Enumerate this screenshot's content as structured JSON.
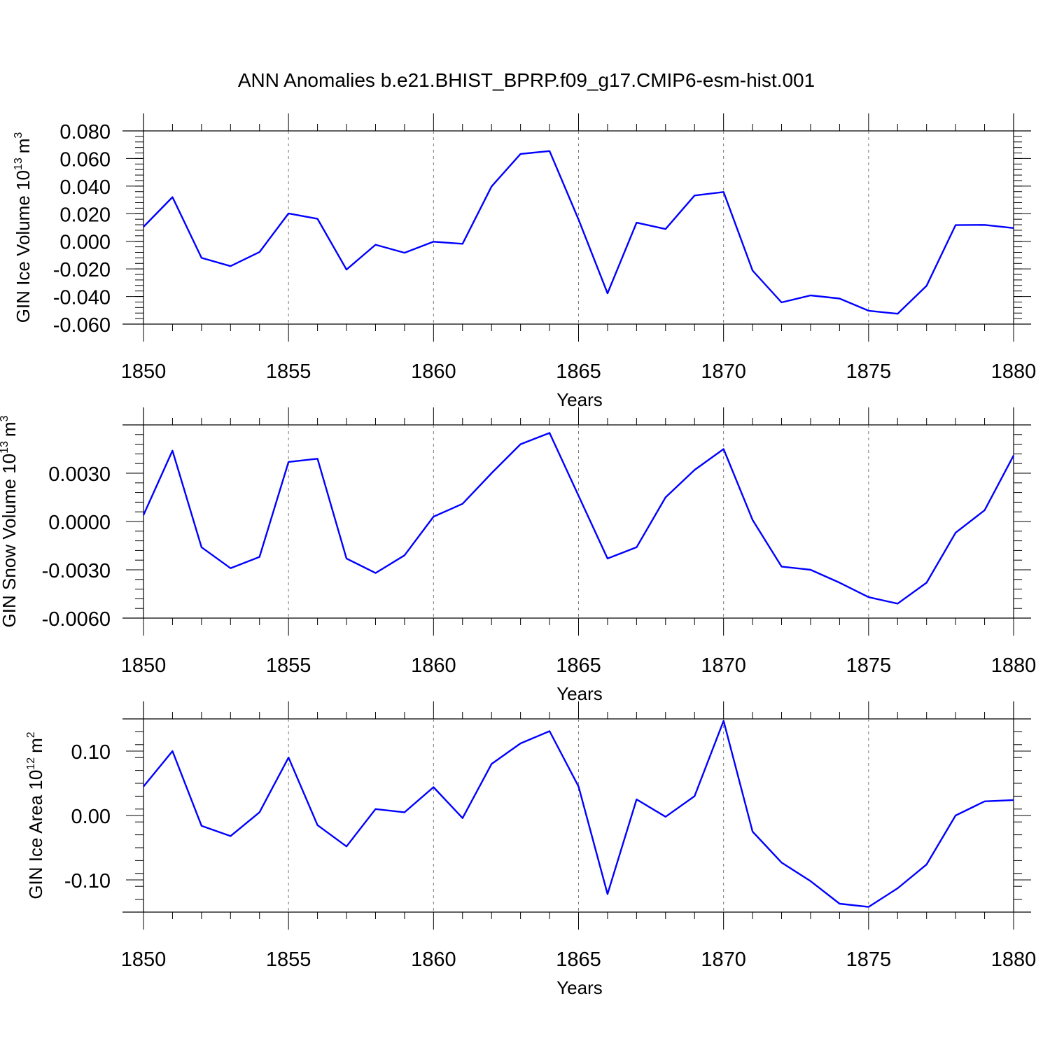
{
  "title": "ANN Anomalies b.e21.BHIST_BPRP.f09_g17.CMIP6-esm-hist.001",
  "colors": {
    "series": "#0000ff",
    "axis": "#000000",
    "grid": "#777777",
    "background": "#ffffff"
  },
  "chart_data": [
    {
      "type": "line",
      "ylabel": "GIN Ice Volume 10",
      "ylabel_exponent": "13",
      "ylabel_unit": "m",
      "ylabel_unit_exponent": "3",
      "xlabel": "Years",
      "xlim": [
        1850,
        1880
      ],
      "ylim": [
        -0.06,
        0.08
      ],
      "x_ticks": [
        1850,
        1855,
        1860,
        1865,
        1870,
        1875,
        1880
      ],
      "x_tick_labels": [
        "1850",
        "1855",
        "1860",
        "1865",
        "1870",
        "1875",
        "1880"
      ],
      "y_ticks": [
        -0.06,
        -0.04,
        -0.02,
        0.0,
        0.02,
        0.04,
        0.06,
        0.08
      ],
      "y_tick_labels": [
        "-0.060",
        "-0.040",
        "-0.020",
        "0.000",
        "0.020",
        "0.040",
        "0.060",
        "0.080"
      ],
      "x_grid": true,
      "x": [
        1850,
        1851,
        1852,
        1853,
        1854,
        1855,
        1856,
        1857,
        1858,
        1859,
        1860,
        1861,
        1862,
        1863,
        1864,
        1865,
        1866,
        1867,
        1868,
        1869,
        1870,
        1871,
        1872,
        1873,
        1874,
        1875,
        1876,
        1877,
        1878,
        1879,
        1880
      ],
      "y": [
        0.0105,
        0.032,
        -0.012,
        -0.018,
        -0.0078,
        0.0202,
        0.0163,
        -0.0205,
        -0.0025,
        -0.0083,
        -0.0003,
        -0.0018,
        0.0397,
        0.0633,
        0.0654,
        0.0158,
        -0.0377,
        0.0135,
        0.0089,
        0.0332,
        0.0357,
        -0.0212,
        -0.0443,
        -0.0392,
        -0.0415,
        -0.0503,
        -0.0525,
        -0.0322,
        0.0117,
        0.0119,
        0.0096
      ]
    },
    {
      "type": "line",
      "ylabel": "GIN Snow Volume 10",
      "ylabel_exponent": "13",
      "ylabel_unit": "m",
      "ylabel_unit_exponent": "3",
      "xlabel": "Years",
      "xlim": [
        1850,
        1880
      ],
      "ylim": [
        -0.006,
        0.006
      ],
      "x_ticks": [
        1850,
        1855,
        1860,
        1865,
        1870,
        1875,
        1880
      ],
      "x_tick_labels": [
        "1850",
        "1855",
        "1860",
        "1865",
        "1870",
        "1875",
        "1880"
      ],
      "y_ticks": [
        -0.006,
        -0.003,
        0.0,
        0.003
      ],
      "y_tick_labels": [
        "-0.0060",
        "-0.0030",
        "0.0000",
        "0.0030"
      ],
      "x_grid": true,
      "x": [
        1850,
        1851,
        1852,
        1853,
        1854,
        1855,
        1856,
        1857,
        1858,
        1859,
        1860,
        1861,
        1862,
        1863,
        1864,
        1865,
        1866,
        1867,
        1868,
        1869,
        1870,
        1871,
        1872,
        1873,
        1874,
        1875,
        1876,
        1877,
        1878,
        1879,
        1880
      ],
      "y": [
        0.0004,
        0.0044,
        -0.0016,
        -0.0029,
        -0.0022,
        0.0037,
        0.0039,
        -0.0023,
        -0.0032,
        -0.0021,
        0.0003,
        0.0011,
        0.003,
        0.0048,
        0.0055,
        0.0016,
        -0.0023,
        -0.0016,
        0.0015,
        0.0032,
        0.0045,
        0.0001,
        -0.0028,
        -0.003,
        -0.0038,
        -0.0047,
        -0.0051,
        -0.0038,
        -0.0007,
        0.0007,
        0.0041
      ]
    },
    {
      "type": "line",
      "ylabel": "GIN Ice Area 10",
      "ylabel_exponent": "12",
      "ylabel_unit": "m",
      "ylabel_unit_exponent": "2",
      "xlabel": "Years",
      "xlim": [
        1850,
        1880
      ],
      "ylim": [
        -0.15,
        0.15
      ],
      "x_ticks": [
        1850,
        1855,
        1860,
        1865,
        1870,
        1875,
        1880
      ],
      "x_tick_labels": [
        "1850",
        "1855",
        "1860",
        "1865",
        "1870",
        "1875",
        "1880"
      ],
      "y_ticks": [
        -0.1,
        0.0,
        0.1
      ],
      "y_tick_labels": [
        "-0.10",
        "0.00",
        "0.10"
      ],
      "x_grid": true,
      "x": [
        1850,
        1851,
        1852,
        1853,
        1854,
        1855,
        1856,
        1857,
        1858,
        1859,
        1860,
        1861,
        1862,
        1863,
        1864,
        1865,
        1866,
        1867,
        1868,
        1869,
        1870,
        1871,
        1872,
        1873,
        1874,
        1875,
        1876,
        1877,
        1878,
        1879,
        1880
      ],
      "y": [
        0.045,
        0.1,
        -0.016,
        -0.032,
        0.005,
        0.09,
        -0.015,
        -0.048,
        0.01,
        0.005,
        0.044,
        -0.004,
        0.08,
        0.112,
        0.131,
        0.045,
        -0.122,
        0.025,
        -0.002,
        0.03,
        0.147,
        -0.025,
        -0.073,
        -0.102,
        -0.137,
        -0.142,
        -0.113,
        -0.076,
        0.0,
        0.022,
        0.024
      ]
    }
  ]
}
